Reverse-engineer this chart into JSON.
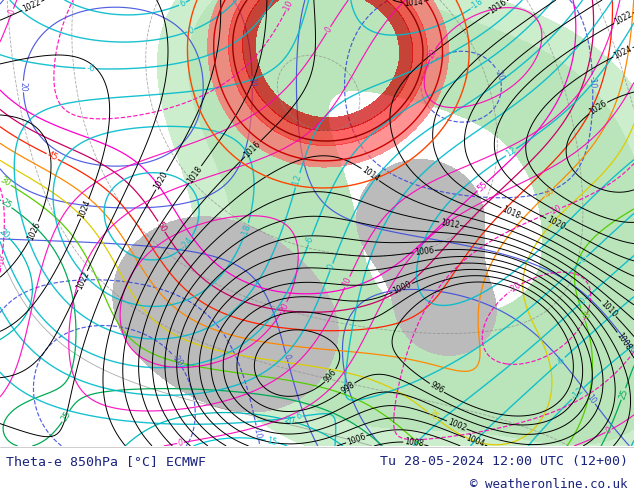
{
  "title_left": "Theta-e 850hPa [°C] ECMWF",
  "title_right": "Tu 28-05-2024 12:00 UTC (12+00)",
  "copyright": "© weatheronline.co.uk",
  "bg_map_color": "#f0f0f0",
  "land_color": "#cceecc",
  "land2_color": "#aaddaa",
  "gray_area_color": "#cccccc",
  "fig_width": 6.34,
  "fig_height": 4.9,
  "dpi": 100,
  "bottom_bar_color": "#ffffff",
  "text_color": "#1a237e",
  "font_size_bottom": 9.5,
  "font_size_copy": 9.0
}
